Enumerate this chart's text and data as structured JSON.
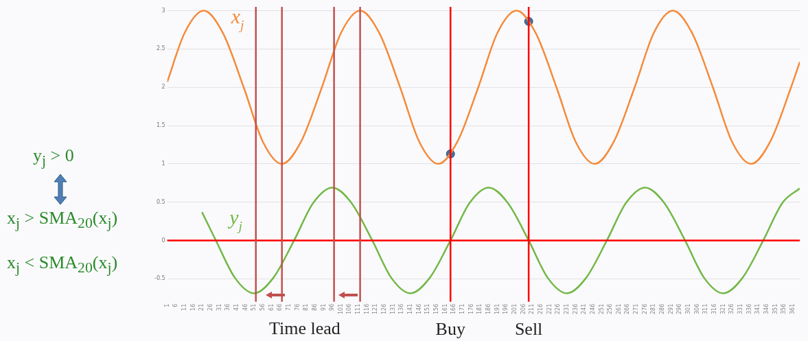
{
  "chart_data": {
    "type": "line",
    "xlim": [
      1,
      365
    ],
    "ylim": [
      -0.8,
      3.05
    ],
    "xticks": [
      1,
      6,
      11,
      16,
      21,
      26,
      31,
      36,
      41,
      46,
      51,
      56,
      61,
      66,
      71,
      76,
      81,
      86,
      91,
      96,
      101,
      106,
      111,
      116,
      121,
      126,
      131,
      136,
      141,
      146,
      151,
      156,
      161,
      166,
      171,
      176,
      181,
      186,
      191,
      196,
      201,
      206,
      211,
      216,
      221,
      226,
      231,
      236,
      241,
      246,
      251,
      256,
      261,
      266,
      271,
      276,
      281,
      286,
      291,
      296,
      301,
      306,
      311,
      316,
      321,
      326,
      331,
      336,
      341,
      346,
      351,
      356,
      361
    ],
    "yticks": [
      -0.5,
      0,
      0.5,
      1,
      1.5,
      2,
      2.5,
      3
    ],
    "grid": "y",
    "legend": false,
    "marker": "none",
    "line_style": "solid",
    "series": [
      {
        "name": "x$_{j}$",
        "color": "#f58a3a",
        "x": [
          1,
          11,
          22,
          33,
          45,
          56,
          67,
          78,
          90,
          101,
          112,
          123,
          135,
          146,
          157,
          168,
          180,
          191,
          202,
          213,
          225,
          236,
          247,
          258,
          270,
          281,
          292,
          303,
          315,
          326,
          337,
          348,
          360,
          365
        ],
        "values": [
          2.07,
          2.71,
          3,
          2.71,
          2,
          1.29,
          1,
          1.29,
          2,
          2.71,
          3,
          2.71,
          2,
          1.29,
          1,
          1.29,
          2,
          2.71,
          3,
          2.71,
          2,
          1.29,
          1,
          1.29,
          2,
          2.71,
          3,
          2.71,
          2,
          1.29,
          1,
          1.29,
          2,
          2.33
        ]
      },
      {
        "name": "y$_{j}$",
        "color": "#72b846",
        "x": [
          21,
          29,
          40,
          51,
          62,
          74,
          85,
          96,
          107,
          119,
          130,
          141,
          152,
          164,
          175,
          186,
          197,
          209,
          220,
          231,
          242,
          254,
          265,
          276,
          287,
          299,
          310,
          321,
          332,
          344,
          355,
          365
        ],
        "values": [
          0.37,
          0,
          -0.49,
          -0.69,
          -0.49,
          0,
          0.49,
          0.69,
          0.49,
          0,
          -0.49,
          -0.69,
          -0.49,
          0,
          0.49,
          0.69,
          0.49,
          0,
          -0.49,
          -0.69,
          -0.49,
          0,
          0.49,
          0.69,
          0.49,
          0,
          -0.49,
          -0.69,
          -0.49,
          0,
          0.49,
          0.68
        ]
      },
      {
        "type": "scatter",
        "marker": "circle",
        "color": "#41719c",
        "x": [
          164,
          209
        ],
        "values": [
          1.13,
          2.86
        ]
      }
    ],
    "ref_lines": [
      {
        "axis": "y",
        "value": 0,
        "color": "#ff0000"
      },
      {
        "axis": "x",
        "value": 52,
        "color": "#c0504d"
      },
      {
        "axis": "x",
        "value": 67,
        "color": "#c0504d"
      },
      {
        "axis": "x",
        "value": 97,
        "color": "#c0504d"
      },
      {
        "axis": "x",
        "value": 112,
        "color": "#c0504d"
      },
      {
        "axis": "x",
        "value": 164,
        "label": "Buy",
        "color": "#ff0000"
      },
      {
        "axis": "x",
        "value": 209,
        "label": "Sell",
        "color": "#ff0000"
      }
    ],
    "annotations": [
      "y$_{j}$ > 0",
      "x$_{j}$ > SMA$_{20}$(x$_{j}$)",
      "x$_{j}$ < SMA$_{20}$(x$_{j}$)",
      "Time lead"
    ]
  }
}
